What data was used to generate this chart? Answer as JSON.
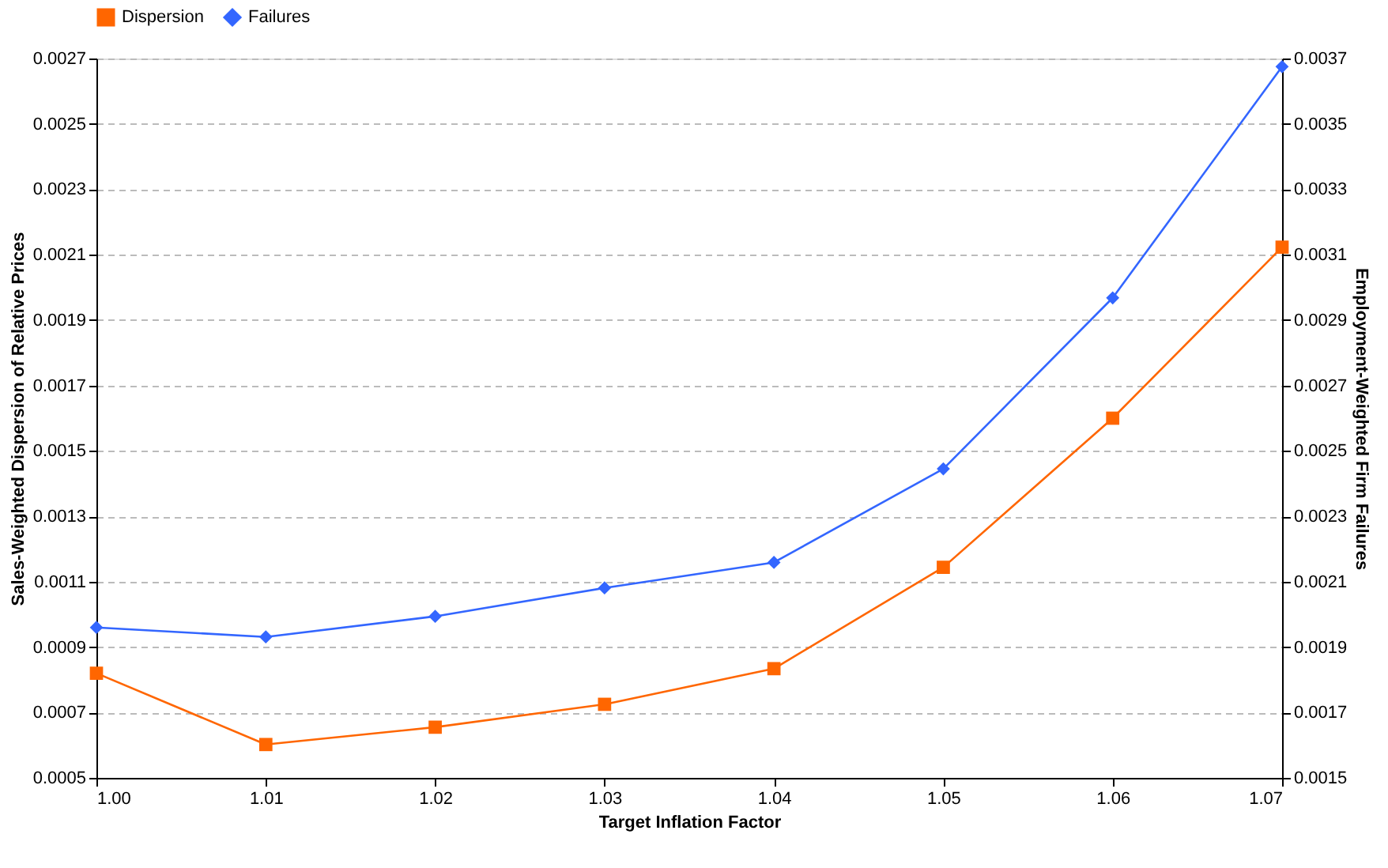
{
  "chart_data": {
    "type": "line",
    "xlabel": "Target Inflation Factor",
    "ylabel": "Sales-Weighted Dispersion of Relative Prices",
    "y2label": "Employment-Weighted Firm Failures",
    "x": [
      1.0,
      1.01,
      1.02,
      1.03,
      1.04,
      1.05,
      1.06,
      1.07
    ],
    "series": [
      {
        "name": "Dispersion",
        "color": "#ff6600",
        "marker": "square",
        "values": [
          0.00082,
          0.000602,
          0.000655,
          0.000725,
          0.000834,
          0.001144,
          0.0016,
          0.002123
        ]
      },
      {
        "name": "Failures",
        "color": "#3366ff",
        "marker": "diamond",
        "axis": "y2",
        "values": [
          0.00196,
          0.001931,
          0.001994,
          0.002081,
          0.002159,
          0.002445,
          0.002968,
          0.003675
        ]
      }
    ],
    "xlim": [
      1.0,
      1.07
    ],
    "xticks": [
      {
        "value": 1.0,
        "label": "1.00"
      },
      {
        "value": 1.01,
        "label": "1.01"
      },
      {
        "value": 1.02,
        "label": "1.02"
      },
      {
        "value": 1.03,
        "label": "1.03"
      },
      {
        "value": 1.04,
        "label": "1.04"
      },
      {
        "value": 1.05,
        "label": "1.05"
      },
      {
        "value": 1.06,
        "label": "1.06"
      },
      {
        "value": 1.07,
        "label": "1.07"
      }
    ],
    "ylim": [
      0.0005,
      0.0027
    ],
    "yticks": [
      0.0005,
      0.0007,
      0.0009,
      0.0011,
      0.0013,
      0.0015,
      0.0017,
      0.0019,
      0.0021,
      0.0023,
      0.0025,
      0.0027
    ],
    "y2lim": [
      0.0015,
      0.0037
    ],
    "y2ticks": [
      0.0015,
      0.0017,
      0.0019,
      0.0021,
      0.0023,
      0.0025,
      0.0027,
      0.0029,
      0.0031,
      0.0033,
      0.0035,
      0.0037
    ],
    "grid": "y",
    "legend": "top",
    "line_style": "solid"
  }
}
